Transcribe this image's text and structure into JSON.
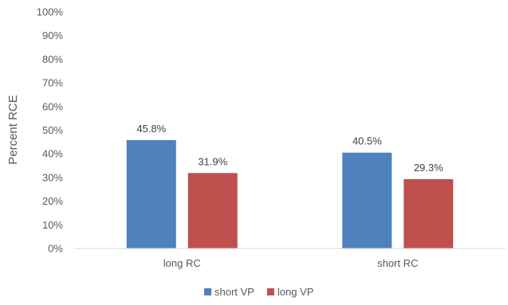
{
  "chart_data": {
    "type": "bar",
    "title": "",
    "xlabel": "",
    "ylabel": "Percent RCE",
    "ylim": [
      0,
      100
    ],
    "yticks": [
      "0%",
      "10%",
      "20%",
      "30%",
      "40%",
      "50%",
      "60%",
      "70%",
      "80%",
      "90%",
      "100%"
    ],
    "categories": [
      "long RC",
      "short RC"
    ],
    "series": [
      {
        "name": "short VP",
        "values": [
          45.8,
          40.5
        ],
        "labels": [
          "45.8%",
          "40.5%"
        ],
        "color": "#4F81BD"
      },
      {
        "name": "long VP",
        "values": [
          31.9,
          29.3
        ],
        "labels": [
          "31.9%",
          "29.3%"
        ],
        "color": "#C0504D"
      }
    ],
    "grid": false,
    "legend": "bottom"
  }
}
